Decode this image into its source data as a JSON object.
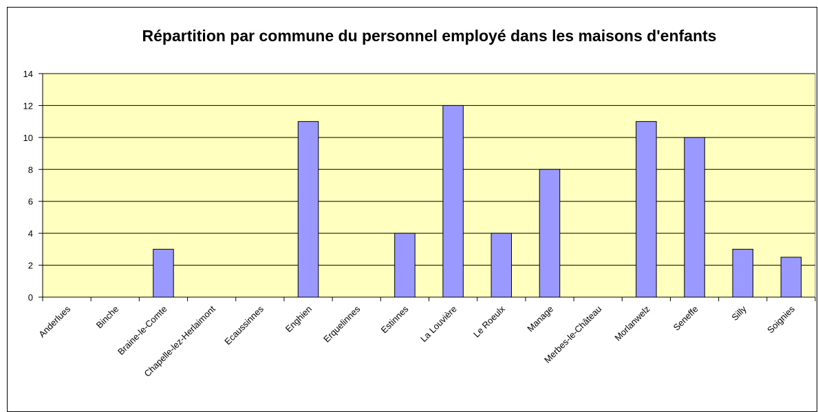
{
  "chart_data": {
    "type": "bar",
    "title": "Répartition par commune du personnel employé dans les maisons d'enfants",
    "categories": [
      "Anderlues",
      "Binche",
      "Braine-le-Comte",
      "Chapelle-lez-Herlaimont",
      "Ecaussinnes",
      "Enghien",
      "Erquelinnes",
      "Estinnes",
      "La Louvière",
      "Le Roeulx",
      "Manage",
      "Merbes-le-Château",
      "Morlanwelz",
      "Seneffe",
      "Silly",
      "Soignies"
    ],
    "values": [
      0,
      0,
      3,
      0,
      0,
      11,
      0,
      4,
      12,
      4,
      8,
      0,
      11,
      10,
      3,
      2.5
    ],
    "color": "#9999ff",
    "ylim": [
      0,
      14
    ],
    "yticks": [
      0,
      2,
      4,
      6,
      8,
      10,
      12,
      14
    ],
    "grid": true
  }
}
